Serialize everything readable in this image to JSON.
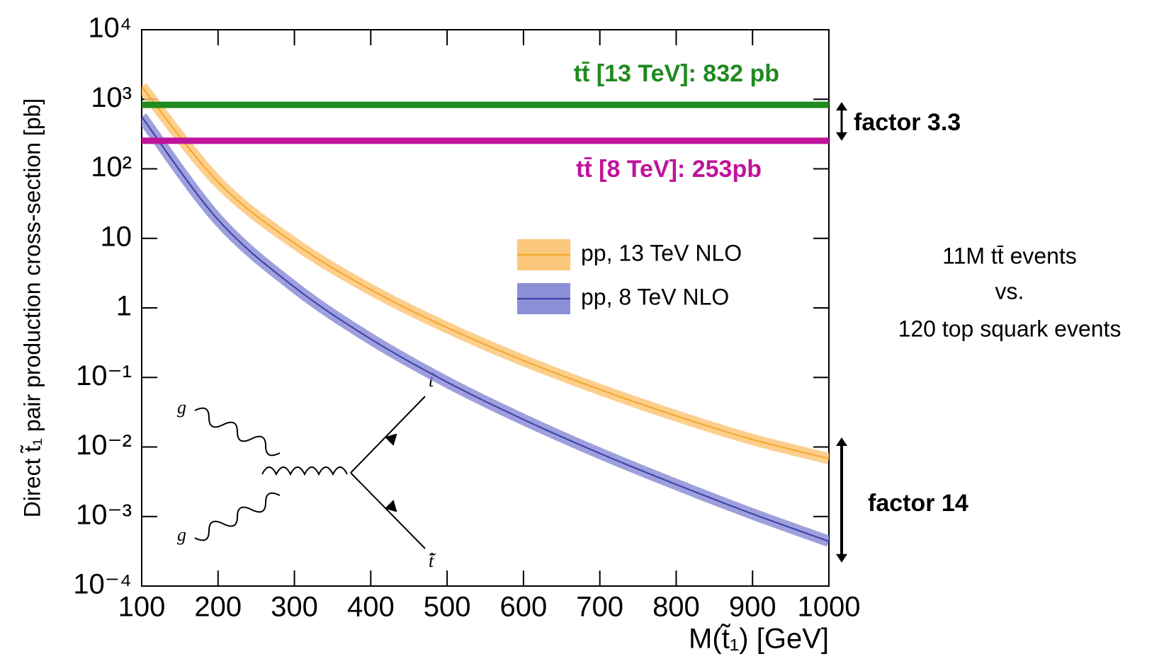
{
  "chart_data": {
    "type": "line",
    "x_label": "M(t̃₁) [GeV]",
    "y_label": "Direct t̃₁ pair production cross-section [pb]",
    "log_y": true,
    "x": [
      100,
      200,
      300,
      400,
      500,
      600,
      700,
      800,
      900,
      1000
    ],
    "series": [
      {
        "name": "pp, 13 TeV NLO",
        "color": "#f5a623",
        "band_color": "#fbc77a",
        "values": [
          1520,
          64.5,
          8.5,
          1.83,
          0.52,
          0.175,
          0.067,
          0.028,
          0.0128,
          0.0068
        ]
      },
      {
        "name": "pp, 8 TeV NLO",
        "color": "#3b3fa8",
        "band_color": "#8c8fd6",
        "values": [
          560,
          18.5,
          1.99,
          0.357,
          0.0856,
          0.0248,
          0.0081,
          0.00289,
          0.00109,
          0.00044
        ]
      }
    ],
    "xlim": [
      100,
      1000
    ],
    "xticks": [
      100,
      200,
      300,
      400,
      500,
      600,
      700,
      800,
      900,
      1000
    ],
    "ylim": [
      0.0001,
      10000
    ],
    "yticks": [
      {
        "value": 0.0001,
        "label": "10⁻⁴"
      },
      {
        "value": 0.001,
        "label": "10⁻³"
      },
      {
        "value": 0.01,
        "label": "10⁻²"
      },
      {
        "value": 0.1,
        "label": "10⁻¹"
      },
      1,
      10,
      {
        "value": 100,
        "label": "10²"
      },
      {
        "value": 1000,
        "label": "10³"
      },
      {
        "value": 10000,
        "label": "10⁴"
      }
    ],
    "legend": "center-right",
    "reference_lines": [
      {
        "label": "tt̄ [13 TeV]: 832 pb",
        "value": 832,
        "color": "#1f8a1f"
      },
      {
        "label": "tt̄ [8 TeV]: 253pb",
        "value": 253,
        "color": "#c0139b"
      }
    ],
    "annotations": [
      "factor 3.3",
      "factor 14",
      "11M tt̄ events",
      "vs.",
      "120 top squark events"
    ],
    "diagram_labels": [
      "g",
      "g",
      "t̃",
      "t̃̄"
    ]
  }
}
